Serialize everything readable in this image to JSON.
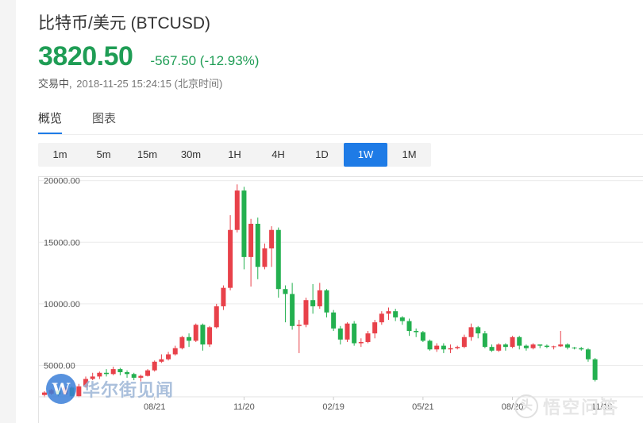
{
  "header": {
    "title": "比特币/美元 (BTCUSD)",
    "price": "3820.50",
    "change": "-567.50 (-12.93%)",
    "status_label": "交易中,",
    "timestamp": "2018-11-25 15:24:15 (北京时间)"
  },
  "tabs": [
    {
      "label": "概览",
      "active": true
    },
    {
      "label": "图表",
      "active": false
    }
  ],
  "periods": [
    {
      "label": "1m"
    },
    {
      "label": "5m"
    },
    {
      "label": "15m"
    },
    {
      "label": "30m"
    },
    {
      "label": "1H"
    },
    {
      "label": "4H"
    },
    {
      "label": "1D"
    },
    {
      "label": "1W",
      "active": true
    },
    {
      "label": "1M"
    }
  ],
  "colors": {
    "up": "#e8414a",
    "down": "#23b04f",
    "accent": "#1e7be6"
  },
  "watermark_left": {
    "logo": "W",
    "text": "华尔街见闻"
  },
  "watermark_right": {
    "icon": "头",
    "text": "悟空问答"
  },
  "chart_data": {
    "type": "candlestick",
    "y_ticks": [
      "20000.00",
      "15000.00",
      "10000.00",
      "5000.00"
    ],
    "y_tick_values": [
      20000,
      15000,
      10000,
      5000
    ],
    "x_ticks": [
      "08/21",
      "11/20",
      "02/19",
      "05/21",
      "08/20",
      "11/19"
    ],
    "x_tick_index": [
      16,
      29,
      42,
      55,
      68,
      81
    ],
    "ylim": [
      2000,
      20300
    ],
    "candles": [
      [
        2600,
        2800,
        2400,
        2900
      ],
      [
        2700,
        3000,
        2600,
        3100
      ],
      [
        2950,
        2650,
        2500,
        3050
      ],
      [
        2650,
        3200,
        2600,
        3300
      ],
      [
        3200,
        2500,
        2300,
        3300
      ],
      [
        2500,
        3300,
        2400,
        3500
      ],
      [
        3300,
        3900,
        3200,
        4100
      ],
      [
        3900,
        4100,
        3800,
        4400
      ],
      [
        4100,
        4400,
        3900,
        4500
      ],
      [
        4400,
        4300,
        4100,
        4700
      ],
      [
        4300,
        4700,
        4200,
        4900
      ],
      [
        4700,
        4450,
        4200,
        4800
      ],
      [
        4450,
        4300,
        4000,
        4600
      ],
      [
        4300,
        4000,
        3800,
        4400
      ],
      [
        4000,
        4150,
        3700,
        4250
      ],
      [
        4150,
        4600,
        4100,
        4700
      ],
      [
        4600,
        5300,
        4500,
        5400
      ],
      [
        5300,
        5500,
        5200,
        5900
      ],
      [
        5500,
        5900,
        5400,
        6100
      ],
      [
        5900,
        6400,
        5800,
        6600
      ],
      [
        6400,
        7300,
        6300,
        7400
      ],
      [
        7300,
        7000,
        6500,
        7600
      ],
      [
        7000,
        8300,
        6900,
        8400
      ],
      [
        8300,
        6700,
        6200,
        8400
      ],
      [
        6700,
        8100,
        6500,
        8200
      ],
      [
        8100,
        9800,
        8000,
        10000
      ],
      [
        9800,
        11300,
        9500,
        11500
      ],
      [
        11300,
        16000,
        11100,
        17200
      ],
      [
        16000,
        19200,
        15800,
        19700
      ],
      [
        19200,
        13800,
        12800,
        19500
      ],
      [
        13800,
        16500,
        11400,
        16900
      ],
      [
        16500,
        13000,
        12000,
        17000
      ],
      [
        13000,
        14500,
        12800,
        14900
      ],
      [
        14500,
        16000,
        13000,
        16300
      ],
      [
        16000,
        11200,
        10500,
        16200
      ],
      [
        11200,
        10800,
        8500,
        11500
      ],
      [
        10800,
        8200,
        7900,
        11700
      ],
      [
        8200,
        8300,
        6000,
        8700
      ],
      [
        8300,
        10300,
        8100,
        10500
      ],
      [
        10300,
        9800,
        9200,
        11600
      ],
      [
        9800,
        11100,
        9600,
        11700
      ],
      [
        11100,
        9300,
        8900,
        11200
      ],
      [
        9300,
        8000,
        7800,
        9500
      ],
      [
        8000,
        7100,
        6700,
        8200
      ],
      [
        7100,
        8400,
        6900,
        8500
      ],
      [
        8400,
        6800,
        6600,
        8600
      ],
      [
        6800,
        6900,
        6500,
        7200
      ],
      [
        6900,
        7600,
        6800,
        7800
      ],
      [
        7600,
        8500,
        7200,
        8700
      ],
      [
        8500,
        9200,
        8300,
        9400
      ],
      [
        9200,
        9400,
        8700,
        9700
      ],
      [
        9400,
        8900,
        8600,
        9600
      ],
      [
        8900,
        8600,
        8300,
        9000
      ],
      [
        8600,
        7800,
        7400,
        8800
      ],
      [
        7800,
        7700,
        7300,
        8000
      ],
      [
        7700,
        7000,
        6900,
        7800
      ],
      [
        7000,
        6300,
        6200,
        7100
      ],
      [
        6300,
        6600,
        6100,
        6800
      ],
      [
        6600,
        6300,
        6000,
        6800
      ],
      [
        6300,
        6400,
        6000,
        6700
      ],
      [
        6400,
        6500,
        6300,
        6600
      ],
      [
        6500,
        7300,
        6400,
        7500
      ],
      [
        7300,
        8100,
        7000,
        8400
      ],
      [
        8100,
        7600,
        7200,
        8200
      ],
      [
        7600,
        6500,
        6400,
        7800
      ],
      [
        6500,
        6200,
        6100,
        6700
      ],
      [
        6200,
        6700,
        6100,
        6800
      ],
      [
        6700,
        6500,
        6200,
        6800
      ],
      [
        6500,
        7300,
        6400,
        7400
      ],
      [
        7300,
        6600,
        6300,
        7400
      ],
      [
        6600,
        6400,
        6200,
        6700
      ],
      [
        6400,
        6700,
        6300,
        6800
      ],
      [
        6700,
        6600,
        6400,
        6700
      ],
      [
        6600,
        6500,
        6400,
        6700
      ],
      [
        6500,
        6550,
        6300,
        6600
      ],
      [
        6550,
        6700,
        6500,
        7800
      ],
      [
        6700,
        6450,
        6300,
        6800
      ],
      [
        6450,
        6400,
        6300,
        6500
      ],
      [
        6400,
        6300,
        6200,
        6500
      ],
      [
        6300,
        5500,
        5300,
        6400
      ],
      [
        5500,
        3820,
        3700,
        5600
      ]
    ]
  }
}
